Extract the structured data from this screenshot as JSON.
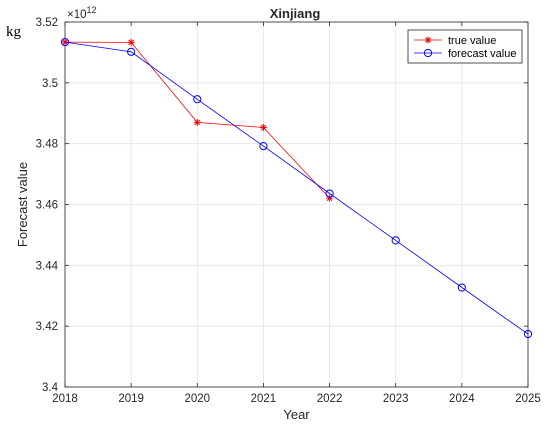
{
  "chart_data": {
    "type": "line",
    "title": "Xinjiang",
    "unit_label": "kg",
    "xlabel": "Year",
    "ylabel": "Forecast value",
    "y_exponent_base": "×10",
    "y_exponent_power": "12",
    "x": [
      2018,
      2019,
      2020,
      2021,
      2022,
      2023,
      2024,
      2025
    ],
    "xlim": [
      2018,
      2025
    ],
    "ylim": [
      3.4,
      3.52
    ],
    "y_ticks": [
      3.4,
      3.42,
      3.44,
      3.46,
      3.48,
      3.5,
      3.52
    ],
    "y_tick_labels": [
      "3.4",
      "3.42",
      "3.44",
      "3.46",
      "3.48",
      "3.5",
      "3.52"
    ],
    "x_tick_labels": [
      "2018",
      "2019",
      "2020",
      "2021",
      "2022",
      "2023",
      "2024",
      "2025"
    ],
    "grid": true,
    "legend_position": "top-right",
    "series": [
      {
        "name": "true value",
        "marker": "asterisk",
        "color": "#ff0000",
        "x": [
          2018,
          2019,
          2020,
          2021,
          2022
        ],
        "values": [
          3.5134,
          3.5133,
          3.487,
          3.4853,
          3.4621
        ]
      },
      {
        "name": "forecast value",
        "marker": "circle",
        "color": "#0000ff",
        "x": [
          2018,
          2019,
          2020,
          2021,
          2022,
          2023,
          2024,
          2025
        ],
        "values": [
          3.5134,
          3.5102,
          3.4946,
          3.4792,
          3.4636,
          3.4482,
          3.4327,
          3.4174
        ]
      }
    ]
  }
}
